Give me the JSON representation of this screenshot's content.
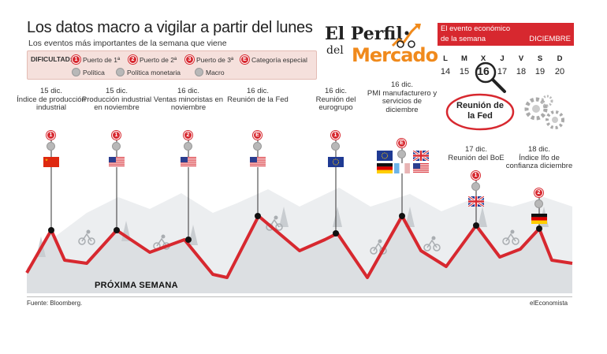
{
  "header": {
    "title": "Los datos macro a vigilar a partir del lunes",
    "subtitle": "Los eventos más importantes de la semana que viene"
  },
  "legend": {
    "difficulty_label": "DIFICULTAD:",
    "items": [
      {
        "badge": "1",
        "label": "Puerto de 1ª"
      },
      {
        "badge": "2",
        "label": "Puerto de 2ª"
      },
      {
        "badge": "3",
        "label": "Puerto de 3ª"
      },
      {
        "badge": "E",
        "label": "Categoría especial"
      }
    ],
    "types": [
      {
        "label": "Política",
        "icon": "politics-icon"
      },
      {
        "label": "Política monetaria",
        "icon": "monetary-policy-icon"
      },
      {
        "label": "Macro",
        "icon": "macro-icon"
      }
    ]
  },
  "logo": {
    "line1": "El Perfil",
    "line2": "del",
    "line3": "Mercado"
  },
  "calendar": {
    "line1": "El evento económico",
    "line2": "de la semana",
    "month": "DICIEMBRE",
    "days": [
      "L",
      "M",
      "X",
      "J",
      "V",
      "S",
      "D"
    ],
    "numbers": [
      "14",
      "15",
      "16",
      "17",
      "18",
      "19",
      "20"
    ],
    "selected_index": 2,
    "event_label": "Reunión de la Fed",
    "colors": {
      "accent": "#d7282f"
    }
  },
  "events": [
    {
      "date": "15 dic.",
      "name": "Índice de producción industrial",
      "badge": "1",
      "icon": "macro-icon",
      "flags": [
        "cn"
      ]
    },
    {
      "date": "15 dic.",
      "name": "Producción industrial en noviembre",
      "badge": "1",
      "icon": "macro-icon",
      "flags": [
        "us"
      ]
    },
    {
      "date": "16 dic.",
      "name": "Ventas minoristas en noviembre",
      "badge": "2",
      "icon": "macro-icon",
      "flags": [
        "us"
      ]
    },
    {
      "date": "16 dic.",
      "name": "Reunión de la Fed",
      "badge": "E",
      "icon": "monetary-policy-icon",
      "flags": [
        "us"
      ]
    },
    {
      "date": "16 dic.",
      "name": "Reunión del eurogrupo",
      "badge": "1",
      "icon": "politics-icon",
      "flags": [
        "eu"
      ]
    },
    {
      "date": "16 dic.",
      "name": "PMI manufacturero y servicios de diciembre",
      "badge": "E",
      "icon": "macro-icon",
      "flags": [
        "eu",
        "uk",
        "de",
        "fr",
        "us"
      ]
    },
    {
      "date": "17 dic.",
      "name": "Reunión del BoE",
      "badge": "1",
      "icon": "monetary-policy-icon",
      "flags": [
        "uk"
      ]
    },
    {
      "date": "18 dic.",
      "name": "Índice Ifo de confianza diciembre",
      "badge": "2",
      "icon": "macro-icon",
      "flags": [
        "de"
      ]
    }
  ],
  "footer": {
    "week_label": "PRÓXIMA SEMANA",
    "source": "Fuente: Bloomberg.",
    "credit": "elEconomista"
  }
}
